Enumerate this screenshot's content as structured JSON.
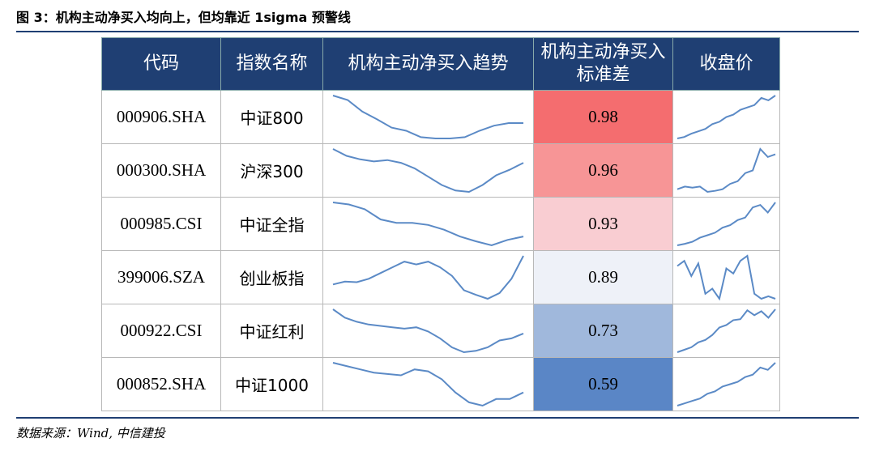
{
  "title": "图 3：机构主动净买入均向上，但均靠近 1sigma 预警线",
  "table": {
    "header": [
      "代码",
      "指数名称",
      "机构主动净买入趋势",
      "机构主动净买入标准差",
      "收盘价"
    ],
    "rows": [
      {
        "code": "000906.SHA",
        "name": "中证800",
        "trend": [
          95,
          88,
          70,
          58,
          45,
          40,
          30,
          28,
          28,
          30,
          40,
          48,
          52,
          52
        ],
        "std": 0.98,
        "std_color": "#f46d6f",
        "price": [
          5,
          8,
          15,
          20,
          25,
          35,
          40,
          50,
          55,
          65,
          70,
          75,
          90,
          85,
          95
        ]
      },
      {
        "code": "000300.SHA",
        "name": "沪深300",
        "trend": [
          90,
          80,
          75,
          72,
          74,
          70,
          62,
          50,
          38,
          30,
          28,
          38,
          52,
          60,
          70
        ],
        "std": 0.96,
        "std_color": "#f79596",
        "price": [
          15,
          20,
          18,
          20,
          10,
          12,
          15,
          25,
          30,
          45,
          50,
          90,
          75,
          80
        ]
      },
      {
        "code": "000985.CSI",
        "name": "中证全指",
        "trend": [
          95,
          92,
          85,
          70,
          65,
          65,
          62,
          55,
          45,
          38,
          32,
          40,
          45
        ],
        "std": 0.93,
        "std_color": "#f9cdd2",
        "price": [
          5,
          8,
          12,
          20,
          25,
          30,
          40,
          45,
          55,
          60,
          80,
          85,
          70,
          90
        ]
      },
      {
        "code": "399006.SZA",
        "name": "创业板指",
        "trend": [
          40,
          45,
          44,
          50,
          60,
          70,
          80,
          75,
          80,
          70,
          55,
          30,
          22,
          15,
          25,
          50,
          90
        ],
        "std": 0.89,
        "std_color": "#eef1f8",
        "price": [
          75,
          85,
          55,
          80,
          20,
          30,
          10,
          70,
          60,
          85,
          95,
          20,
          10,
          15,
          10
        ]
      },
      {
        "code": "000922.CSI",
        "name": "中证红利",
        "trend": [
          90,
          78,
          72,
          68,
          66,
          64,
          62,
          64,
          58,
          48,
          35,
          28,
          30,
          35,
          45,
          48,
          55
        ],
        "std": 0.73,
        "std_color": "#a0b8dc",
        "price": [
          5,
          10,
          15,
          25,
          30,
          40,
          55,
          60,
          70,
          72,
          90,
          80,
          88,
          75,
          92
        ]
      },
      {
        "code": "000852.SHA",
        "name": "中证1000",
        "trend": [
          95,
          90,
          85,
          80,
          78,
          76,
          85,
          82,
          70,
          50,
          35,
          30,
          40,
          40,
          50
        ],
        "std": 0.59,
        "std_color": "#5a86c6",
        "price": [
          5,
          10,
          15,
          20,
          30,
          35,
          45,
          50,
          55,
          65,
          70,
          85,
          80,
          95
        ]
      }
    ]
  },
  "source": "数据来源：Wind, 中信建投"
}
